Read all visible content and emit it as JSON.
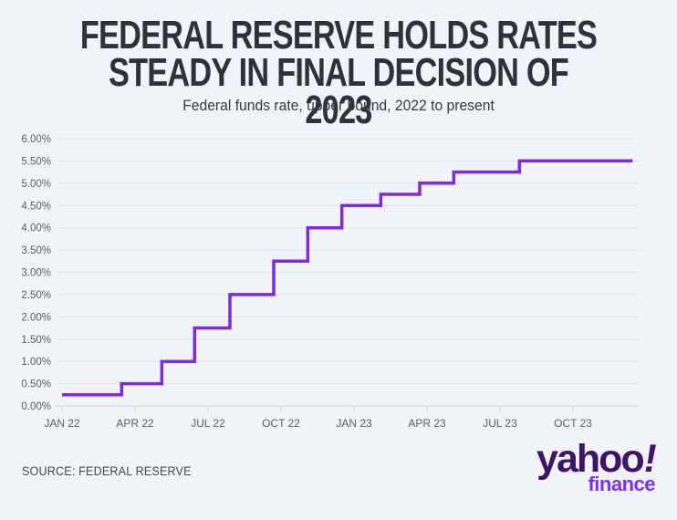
{
  "page": {
    "background_color": "#f0f4f8"
  },
  "header": {
    "title": "FEDERAL RESERVE HOLDS RATES\nSTEADY IN FINAL DECISION OF 2023",
    "subtitle": "Federal funds rate, upper bound, 2022 to present"
  },
  "chart_data": {
    "type": "line",
    "line_style": "step-after",
    "title": "FEDERAL RESERVE HOLDS RATES STEADY IN FINAL DECISION OF 2023",
    "subtitle": "Federal funds rate, upper bound, 2022 to present",
    "xlabel": "",
    "ylabel": "Federal funds rate, upper bound",
    "ylim": [
      0,
      6
    ],
    "ytick_step": 0.5,
    "ytick_labels": [
      "0.00%",
      "0.50%",
      "1.00%",
      "1.50%",
      "2.00%",
      "2.50%",
      "3.00%",
      "3.50%",
      "4.00%",
      "4.50%",
      "5.00%",
      "5.50%",
      "6.00%"
    ],
    "xticks": [
      {
        "label": "JAN 22",
        "month": 0
      },
      {
        "label": "APR 22",
        "month": 3
      },
      {
        "label": "JUL 22",
        "month": 6
      },
      {
        "label": "OCT 22",
        "month": 9
      },
      {
        "label": "JAN 23",
        "month": 12
      },
      {
        "label": "APR 23",
        "month": 15
      },
      {
        "label": "JUL 23",
        "month": 18
      },
      {
        "label": "OCT 23",
        "month": 21
      }
    ],
    "grid": true,
    "legend": "none",
    "series": [
      {
        "name": "Federal funds rate, upper bound",
        "color": "#7e2ae2",
        "points": [
          {
            "date": "2022-01",
            "month": 0,
            "rate": 0.25
          },
          {
            "date": "2022-03",
            "month": 2.45,
            "rate": 0.5
          },
          {
            "date": "2022-05",
            "month": 4.1,
            "rate": 1.0
          },
          {
            "date": "2022-06",
            "month": 5.45,
            "rate": 1.75
          },
          {
            "date": "2022-07",
            "month": 6.9,
            "rate": 2.5
          },
          {
            "date": "2022-09",
            "month": 8.7,
            "rate": 3.25
          },
          {
            "date": "2022-11",
            "month": 10.1,
            "rate": 4.0
          },
          {
            "date": "2022-12",
            "month": 11.5,
            "rate": 4.5
          },
          {
            "date": "2023-02",
            "month": 13.1,
            "rate": 4.75
          },
          {
            "date": "2023-03",
            "month": 14.7,
            "rate": 5.0
          },
          {
            "date": "2023-05",
            "month": 16.1,
            "rate": 5.25
          },
          {
            "date": "2023-07",
            "month": 18.8,
            "rate": 5.5
          },
          {
            "date": "2023-12",
            "month": 23.45,
            "rate": 5.5
          }
        ]
      }
    ]
  },
  "footer": {
    "source": "SOURCE: FEDERAL RESERVE",
    "logo": {
      "brand": "yahoo",
      "bang": "!",
      "sub": "finance",
      "brand_color": "#3f1466",
      "sub_color": "#7d2eff"
    }
  }
}
